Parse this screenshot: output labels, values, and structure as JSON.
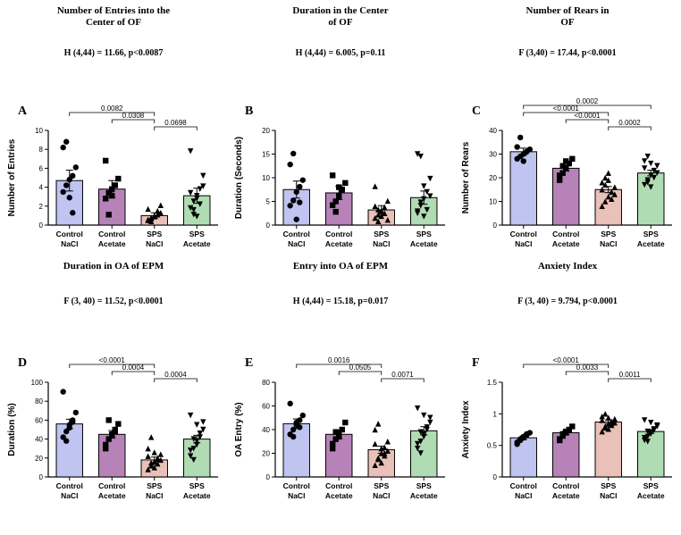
{
  "columns": [
    {
      "title1": "Number of Entries into the",
      "title2": "Center of  OF",
      "stat": "H (4,44) = 11.66, p<0.0087",
      "sub": "Duration in OA of EPM",
      "sub_stat": "F (3, 40) = 11.52, p<0.0001"
    },
    {
      "title1": "Duration in the Center",
      "title2": "of OF",
      "stat": "H (4,44) = 6.005, p=0.11",
      "sub": "Entry into OA of EPM",
      "sub_stat": "H (4,44) = 15.18, p=0.017"
    },
    {
      "title1": "Number of Rears in",
      "title2": "OF",
      "stat": "F (3,40) = 17.44, p<0.0001",
      "sub": "Anxiety Index",
      "sub_stat": "F (3, 40) = 9.794, p<0.0001"
    }
  ],
  "x_categories": [
    [
      "Control",
      "NaCl"
    ],
    [
      "Control",
      "Acetate"
    ],
    [
      "SPS",
      "NaCl"
    ],
    [
      "SPS",
      "Acetate"
    ]
  ],
  "bar_colors": [
    "#bfc4f0",
    "#b782b8",
    "#e9c1b9",
    "#b0dcb3"
  ],
  "bar_edge": "#000000",
  "marker_fill": "#000000",
  "markers": [
    "circle",
    "square",
    "triangle",
    "vtri"
  ],
  "panels": {
    "A": {
      "letter": "A",
      "ylab": "Number of Entries",
      "ymin": 0,
      "ymax": 10,
      "ytick": 2,
      "bars": [
        4.7,
        3.8,
        1.0,
        3.1
      ],
      "err": [
        1.1,
        0.9,
        0.3,
        0.8
      ],
      "points": [
        [
          3.5,
          4.2,
          4.8,
          5.2,
          6.1,
          8.2,
          8.8,
          2.9,
          1.3
        ],
        [
          2.8,
          3.4,
          3.8,
          4.2,
          4.9,
          6.8,
          1.1,
          3.1
        ],
        [
          0.6,
          0.8,
          1.0,
          1.1,
          1.3,
          1.7,
          0.4,
          0.9,
          1.5,
          2.1,
          0.5,
          0.7
        ],
        [
          1.8,
          2.5,
          3.1,
          3.8,
          5.2,
          7.8,
          1.1,
          0.9,
          2.2,
          4.1,
          3.4,
          1.6,
          2.8
        ]
      ],
      "pvals": [
        {
          "g": [
            0,
            2
          ],
          "lvl": 3,
          "t": "0.0082"
        },
        {
          "g": [
            1,
            2
          ],
          "lvl": 2,
          "t": "0.0308"
        },
        {
          "g": [
            2,
            3
          ],
          "lvl": 1,
          "t": "0.0698"
        }
      ]
    },
    "B": {
      "letter": "B",
      "ylab": "Duration (Seconds)",
      "ymin": 0,
      "ymax": 20,
      "ytick": 5,
      "bars": [
        7.5,
        6.8,
        3.2,
        5.8
      ],
      "err": [
        1.8,
        1.4,
        0.9,
        1.4
      ],
      "points": [
        [
          4.1,
          5.2,
          7.0,
          8.1,
          9.5,
          12.8,
          15.1,
          1.2,
          4.8
        ],
        [
          4.2,
          5.0,
          6.1,
          7.5,
          8.9,
          10.5,
          2.8,
          8.0
        ],
        [
          1.5,
          2.2,
          3.0,
          3.8,
          5.1,
          8.2,
          0.8,
          1.9,
          2.5,
          1.1,
          4.0,
          3.3
        ],
        [
          2.5,
          4.1,
          5.5,
          7.0,
          9.8,
          15.0,
          14.5,
          1.8,
          3.2,
          6.1,
          2.9,
          4.8,
          8.2
        ]
      ],
      "pvals": []
    },
    "C": {
      "letter": "C",
      "ylab": "Number of Rears",
      "ymin": 0,
      "ymax": 40,
      "ytick": 10,
      "bars": [
        31,
        24,
        15,
        22
      ],
      "err": [
        1.5,
        1.2,
        1.3,
        1.2
      ],
      "points": [
        [
          28,
          29,
          30,
          31,
          32,
          33,
          37,
          27,
          31
        ],
        [
          21,
          22,
          24,
          26,
          28,
          19,
          25,
          27
        ],
        [
          8,
          10,
          12,
          14,
          16,
          18,
          20,
          22,
          11,
          13,
          15,
          17,
          19,
          14
        ],
        [
          17,
          19,
          21,
          23,
          25,
          27,
          29,
          16,
          20,
          22,
          24,
          18,
          26
        ]
      ],
      "pvals": [
        {
          "g": [
            0,
            3
          ],
          "lvl": 4,
          "t": "0.0002"
        },
        {
          "g": [
            0,
            2
          ],
          "lvl": 3,
          "t": "<0.0001"
        },
        {
          "g": [
            1,
            2
          ],
          "lvl": 2,
          "t": "<0.0001"
        },
        {
          "g": [
            2,
            3
          ],
          "lvl": 1,
          "t": "0.0002"
        }
      ]
    },
    "D": {
      "letter": "D",
      "ylab": "Duration (%)",
      "ymin": 0,
      "ymax": 100,
      "ytick": 20,
      "bars": [
        56,
        45,
        18,
        40
      ],
      "err": [
        5,
        4,
        3,
        4
      ],
      "points": [
        [
          42,
          48,
          55,
          60,
          68,
          90,
          38,
          52,
          58
        ],
        [
          34,
          40,
          45,
          50,
          56,
          30,
          60,
          44,
          48
        ],
        [
          8,
          12,
          16,
          20,
          24,
          30,
          42,
          10,
          14,
          18,
          22,
          15,
          26,
          19
        ],
        [
          22,
          30,
          38,
          46,
          58,
          65,
          18,
          34,
          42,
          50,
          28,
          40,
          55
        ]
      ],
      "pvals": [
        {
          "g": [
            0,
            2
          ],
          "lvl": 3,
          "t": "<0.0001"
        },
        {
          "g": [
            1,
            2
          ],
          "lvl": 2,
          "t": "0.0004"
        },
        {
          "g": [
            2,
            3
          ],
          "lvl": 1,
          "t": "0.0004"
        }
      ]
    },
    "E": {
      "letter": "E",
      "ylab": "OA Entry (%)",
      "ymin": 0,
      "ymax": 80,
      "ytick": 20,
      "bars": [
        45,
        36,
        23,
        39
      ],
      "err": [
        4,
        3.5,
        3,
        3.5
      ],
      "points": [
        [
          36,
          40,
          44,
          48,
          52,
          62,
          34,
          46,
          42
        ],
        [
          28,
          32,
          36,
          40,
          46,
          24,
          38,
          34
        ],
        [
          10,
          15,
          20,
          25,
          30,
          40,
          45,
          12,
          18,
          22,
          28,
          16,
          24,
          20
        ],
        [
          24,
          30,
          36,
          42,
          50,
          58,
          20,
          34,
          40,
          46,
          28,
          38,
          52
        ]
      ],
      "pvals": [
        {
          "g": [
            0,
            2
          ],
          "lvl": 3,
          "t": "0.0016"
        },
        {
          "g": [
            1,
            2
          ],
          "lvl": 2,
          "t": "0.0505"
        },
        {
          "g": [
            2,
            3
          ],
          "lvl": 1,
          "t": "0.0071"
        }
      ]
    },
    "F": {
      "letter": "F",
      "ylab": "Anxiety Index",
      "ymin": 0.0,
      "ymax": 1.5,
      "ytick": 0.5,
      "bars": [
        0.62,
        0.7,
        0.87,
        0.72
      ],
      "err": [
        0.03,
        0.03,
        0.03,
        0.03
      ],
      "points": [
        [
          0.55,
          0.58,
          0.62,
          0.66,
          0.7,
          0.52,
          0.6,
          0.64,
          0.68
        ],
        [
          0.6,
          0.65,
          0.7,
          0.75,
          0.8,
          0.58,
          0.68,
          0.72
        ],
        [
          0.72,
          0.78,
          0.84,
          0.88,
          0.92,
          0.96,
          1.0,
          0.76,
          0.82,
          0.86,
          0.9,
          0.8,
          0.94,
          0.85
        ],
        [
          0.58,
          0.64,
          0.7,
          0.76,
          0.82,
          0.9,
          0.56,
          0.68,
          0.74,
          0.8,
          0.62,
          0.72,
          0.86
        ]
      ],
      "pvals": [
        {
          "g": [
            0,
            2
          ],
          "lvl": 3,
          "t": "<0.0001"
        },
        {
          "g": [
            1,
            2
          ],
          "lvl": 2,
          "t": "0.0033"
        },
        {
          "g": [
            2,
            3
          ],
          "lvl": 1,
          "t": "0.0011"
        }
      ]
    }
  },
  "panel_layout": [
    [
      "A",
      "B",
      "C"
    ],
    [
      "D",
      "E",
      "F"
    ]
  ]
}
